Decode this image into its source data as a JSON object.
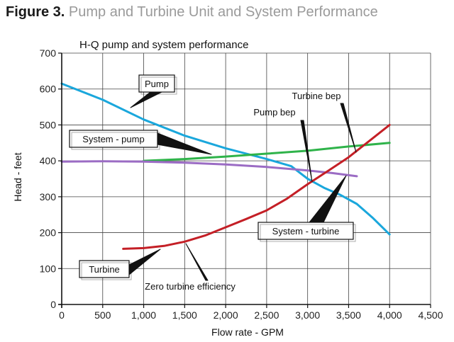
{
  "figure": {
    "label": "Figure 3.",
    "title": "Pump and Turbine Unit and System Performance"
  },
  "chart_data": {
    "type": "line",
    "title": "H-Q pump and system performance",
    "xlabel": "Flow rate - GPM",
    "ylabel": "Head - feet",
    "xlim": [
      0,
      4500
    ],
    "ylim": [
      0,
      700
    ],
    "x_ticks": [
      0,
      500,
      1000,
      1500,
      2000,
      2500,
      3000,
      3500,
      4000,
      4500
    ],
    "x_tick_labels": [
      "0",
      "500",
      "1,000",
      "1,500",
      "2,000",
      "2,500",
      "3,000",
      "3,500",
      "4,000",
      "4,500"
    ],
    "y_ticks": [
      0,
      100,
      200,
      300,
      400,
      500,
      600,
      700
    ],
    "y_tick_labels": [
      "0",
      "100",
      "200",
      "300",
      "400",
      "500",
      "600",
      "700"
    ],
    "grid": true,
    "series": [
      {
        "name": "Pump",
        "color": "#1aa7dc",
        "x": [
          0,
          500,
          1000,
          1500,
          2000,
          2500,
          2800,
          3000,
          3200,
          3400,
          3600,
          3800,
          4000
        ],
        "y": [
          615,
          570,
          515,
          470,
          435,
          405,
          385,
          350,
          325,
          305,
          280,
          240,
          195
        ]
      },
      {
        "name": "System - pump",
        "color": "#2fb34a",
        "x": [
          1000,
          1500,
          2000,
          2500,
          3000,
          3500,
          4000
        ],
        "y": [
          400,
          405,
          412,
          420,
          428,
          440,
          450
        ]
      },
      {
        "name": "System - turbine",
        "color": "#9b6cc4",
        "x": [
          0,
          500,
          1000,
          1500,
          2000,
          2500,
          3000,
          3300,
          3600
        ],
        "y": [
          398,
          399,
          398,
          395,
          390,
          383,
          373,
          366,
          357
        ]
      },
      {
        "name": "Turbine",
        "color": "#c41f26",
        "x": [
          750,
          1000,
          1250,
          1500,
          1750,
          2000,
          2250,
          2500,
          2750,
          3000,
          3250,
          3500,
          3750,
          4000
        ],
        "y": [
          155,
          157,
          163,
          175,
          192,
          215,
          238,
          262,
          295,
          335,
          372,
          410,
          455,
          500
        ]
      }
    ],
    "annotations": [
      {
        "text": "Pump",
        "boxed": true
      },
      {
        "text": "System - pump",
        "boxed": true
      },
      {
        "text": "Turbine bep",
        "boxed": false
      },
      {
        "text": "Pump bep",
        "boxed": false
      },
      {
        "text": "System - turbine",
        "boxed": true
      },
      {
        "text": "Turbine",
        "boxed": true
      },
      {
        "text": "Zero turbine efficiency",
        "boxed": false
      }
    ]
  }
}
